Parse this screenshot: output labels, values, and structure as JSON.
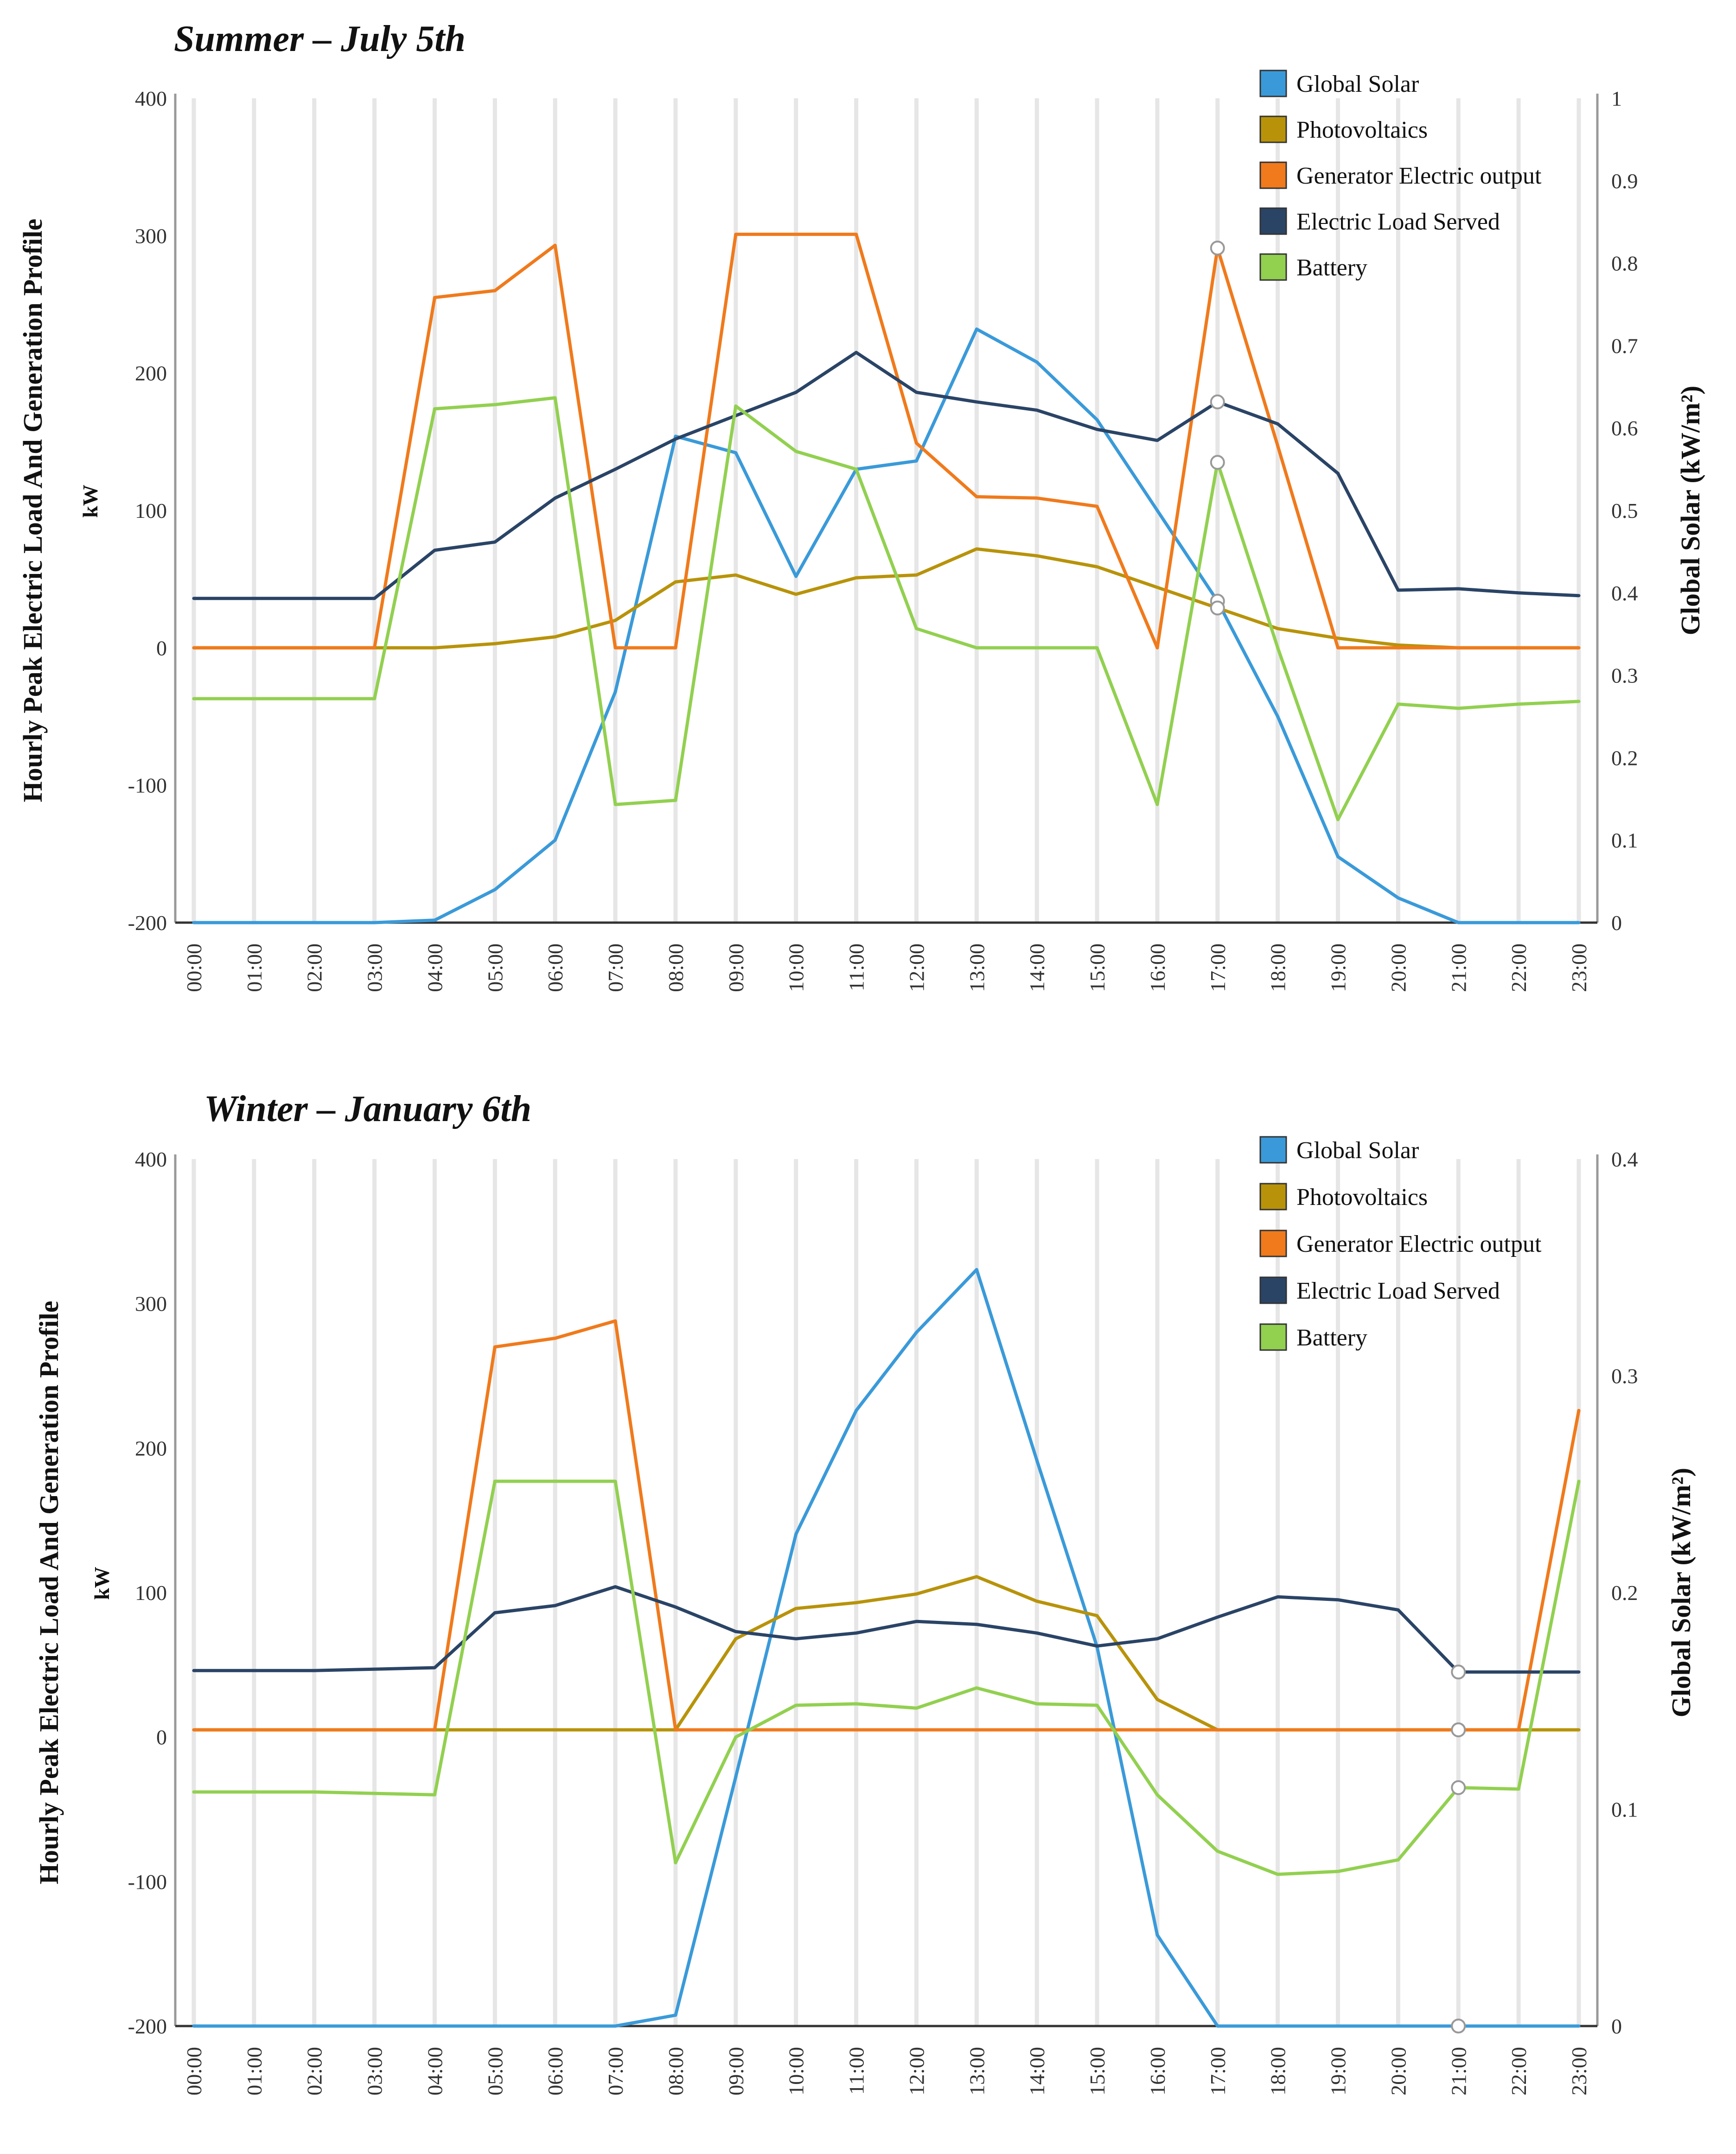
{
  "chart_data": [
    {
      "type": "line",
      "title": "Summer – July 5th",
      "ylabel_left": "Hourly Peak Electric Load And Generation Profile",
      "ylabel_left_unit": "kW",
      "ylabel_right": "Global Solar (kW/m²)",
      "ylim_left": [
        -200,
        400
      ],
      "ylim_right": [
        0,
        1
      ],
      "yticks_left": [
        "400",
        "300",
        "200",
        "100",
        "0",
        "-100",
        "-200"
      ],
      "yticks_right": [
        "1",
        "0.9",
        "0.8",
        "0.7",
        "0.6",
        "0.5",
        "0.4",
        "0.3",
        "0.2",
        "0.1",
        "0"
      ],
      "categories": [
        "00:00",
        "01:00",
        "02:00",
        "03:00",
        "04:00",
        "05:00",
        "06:00",
        "07:00",
        "08:00",
        "09:00",
        "10:00",
        "11:00",
        "12:00",
        "13:00",
        "14:00",
        "15:00",
        "16:00",
        "17:00",
        "18:00",
        "19:00",
        "20:00",
        "21:00",
        "22:00",
        "23:00"
      ],
      "series": [
        {
          "name": "Global Solar",
          "color": "#3a9ad9",
          "axis": "right",
          "values": [
            0,
            0,
            0,
            0,
            0.003,
            0.04,
            0.1,
            0.28,
            0.59,
            0.57,
            0.42,
            0.55,
            0.56,
            0.72,
            0.68,
            0.61,
            0.5,
            0.39,
            0.25,
            0.08,
            0.03,
            0,
            0,
            0
          ]
        },
        {
          "name": "Photovoltaics",
          "color": "#b8930a",
          "axis": "left",
          "values": [
            0,
            0,
            0,
            0,
            0,
            3,
            8,
            20,
            48,
            53,
            39,
            51,
            53,
            72,
            67,
            59,
            44,
            29,
            14,
            7,
            2,
            0,
            0,
            0
          ]
        },
        {
          "name": "Generator Electric output",
          "color": "#f07a1c",
          "axis": "left",
          "values": [
            0,
            0,
            0,
            0,
            255,
            260,
            293,
            0,
            0,
            301,
            301,
            301,
            149,
            110,
            109,
            103,
            0,
            291,
            147,
            0,
            0,
            0,
            0,
            0
          ]
        },
        {
          "name": "Electric Load Served",
          "color": "#2a4466",
          "axis": "left",
          "values": [
            36,
            36,
            36,
            36,
            71,
            77,
            109,
            130,
            152,
            169,
            186,
            215,
            186,
            179,
            173,
            159,
            151,
            179,
            163,
            127,
            42,
            43,
            40,
            38
          ]
        },
        {
          "name": "Battery",
          "color": "#92d050",
          "axis": "left",
          "values": [
            -37,
            -37,
            -37,
            -37,
            174,
            177,
            182,
            -114,
            -111,
            176,
            143,
            130,
            14,
            0,
            0,
            0,
            -114,
            135,
            0,
            -125,
            -41,
            -44,
            -41,
            -39
          ]
        }
      ],
      "highlight_category": "17:00"
    },
    {
      "type": "line",
      "title": "Winter – January 6th",
      "ylabel_left": "Hourly Peak Electric Load And Generation Profile",
      "ylabel_left_unit": "kW",
      "ylabel_right": "Global Solar (kW/m²)",
      "ylim_left": [
        -200,
        400
      ],
      "ylim_right": [
        0,
        0.4
      ],
      "yticks_left": [
        "400",
        "300",
        "200",
        "100",
        "0",
        "-100",
        "-200"
      ],
      "yticks_right": [
        "0.4",
        "0.3",
        "0.2",
        "0.1",
        "0"
      ],
      "categories": [
        "00:00",
        "01:00",
        "02:00",
        "03:00",
        "04:00",
        "05:00",
        "06:00",
        "07:00",
        "08:00",
        "09:00",
        "10:00",
        "11:00",
        "12:00",
        "13:00",
        "14:00",
        "15:00",
        "16:00",
        "17:00",
        "18:00",
        "19:00",
        "20:00",
        "21:00",
        "22:00",
        "23:00"
      ],
      "series": [
        {
          "name": "Global Solar",
          "color": "#3a9ad9",
          "axis": "right",
          "values": [
            0,
            0,
            0,
            0,
            0,
            0,
            0,
            0,
            0.005,
            0.115,
            0.227,
            0.284,
            0.32,
            0.349,
            0.261,
            0.175,
            0.042,
            0,
            0,
            0,
            0,
            0,
            0,
            0
          ]
        },
        {
          "name": "Photovoltaics",
          "color": "#b8930a",
          "axis": "left",
          "values": [
            5,
            5,
            5,
            5,
            5,
            5,
            5,
            5,
            5,
            68,
            89,
            93,
            99,
            111,
            94,
            84,
            26,
            5,
            5,
            5,
            5,
            5,
            5,
            5
          ]
        },
        {
          "name": "Generator Electric output",
          "color": "#f07a1c",
          "axis": "left",
          "values": [
            5,
            5,
            5,
            5,
            5,
            270,
            276,
            288,
            5,
            5,
            5,
            5,
            5,
            5,
            5,
            5,
            5,
            5,
            5,
            5,
            5,
            5,
            5,
            226
          ]
        },
        {
          "name": "Electric Load Served",
          "color": "#2a4466",
          "axis": "left",
          "values": [
            46,
            46,
            46,
            47,
            48,
            86,
            91,
            104,
            90,
            73,
            68,
            72,
            80,
            78,
            72,
            63,
            68,
            83,
            97,
            95,
            88,
            45,
            45,
            45
          ]
        },
        {
          "name": "Battery",
          "color": "#92d050",
          "axis": "left",
          "values": [
            -38,
            -38,
            -38,
            -39,
            -40,
            177,
            177,
            177,
            -87,
            0,
            22,
            23,
            20,
            34,
            23,
            22,
            -40,
            -79,
            -95,
            -93,
            -85,
            -35,
            -36,
            177
          ]
        }
      ],
      "highlight_category": "21:00"
    }
  ]
}
